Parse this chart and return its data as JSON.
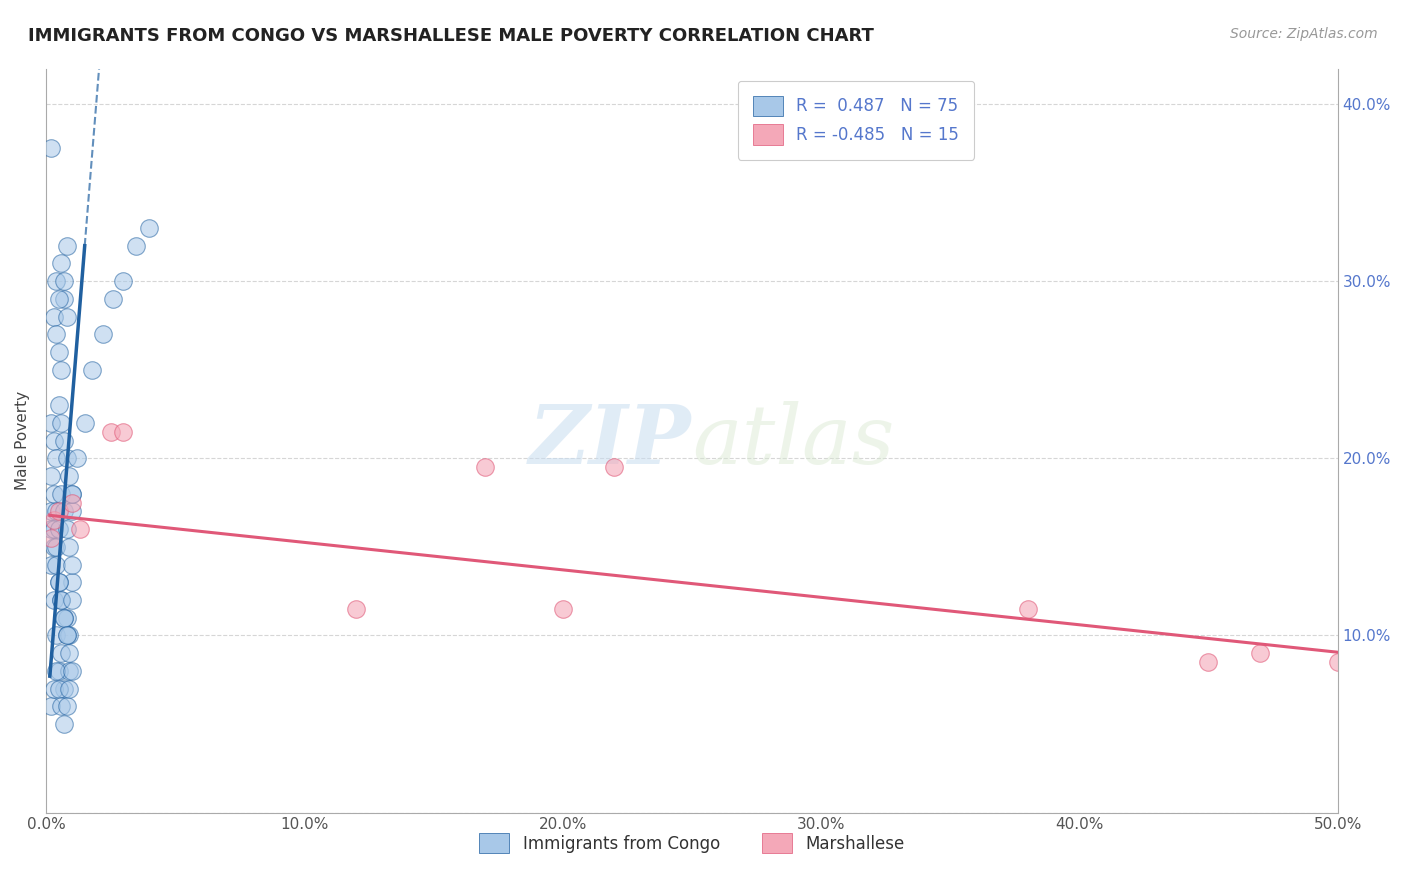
{
  "title": "IMMIGRANTS FROM CONGO VS MARSHALLESE MALE POVERTY CORRELATION CHART",
  "source": "Source: ZipAtlas.com",
  "ylabel": "Male Poverty",
  "watermark_zip": "ZIP",
  "watermark_atlas": "atlas",
  "xlim": [
    0.0,
    0.5
  ],
  "ylim": [
    0.0,
    0.42
  ],
  "blue_color": "#a8c8e8",
  "pink_color": "#f4a8b8",
  "blue_line_color": "#2060a0",
  "pink_line_color": "#e05878",
  "tick_color": "#5577cc",
  "grid_color": "#cccccc",
  "congo_x": [
    0.002,
    0.003,
    0.004,
    0.005,
    0.006,
    0.007,
    0.008,
    0.009,
    0.01,
    0.002,
    0.003,
    0.004,
    0.005,
    0.006,
    0.007,
    0.008,
    0.009,
    0.01,
    0.002,
    0.003,
    0.004,
    0.005,
    0.006,
    0.007,
    0.008,
    0.009,
    0.01,
    0.002,
    0.003,
    0.004,
    0.005,
    0.006,
    0.007,
    0.008,
    0.009,
    0.01,
    0.002,
    0.003,
    0.004,
    0.005,
    0.006,
    0.007,
    0.008,
    0.009,
    0.01,
    0.002,
    0.003,
    0.004,
    0.005,
    0.006,
    0.007,
    0.008,
    0.009,
    0.01,
    0.003,
    0.004,
    0.005,
    0.006,
    0.007,
    0.008,
    0.004,
    0.005,
    0.006,
    0.007,
    0.008,
    0.01,
    0.012,
    0.015,
    0.018,
    0.022,
    0.026,
    0.03,
    0.035,
    0.04,
    0.002
  ],
  "congo_y": [
    0.14,
    0.12,
    0.1,
    0.08,
    0.09,
    0.07,
    0.11,
    0.1,
    0.13,
    0.16,
    0.15,
    0.14,
    0.13,
    0.12,
    0.11,
    0.1,
    0.09,
    0.14,
    0.17,
    0.16,
    0.15,
    0.13,
    0.12,
    0.11,
    0.1,
    0.08,
    0.12,
    0.06,
    0.07,
    0.08,
    0.07,
    0.06,
    0.05,
    0.06,
    0.07,
    0.08,
    0.19,
    0.18,
    0.17,
    0.16,
    0.18,
    0.17,
    0.16,
    0.15,
    0.17,
    0.22,
    0.21,
    0.2,
    0.23,
    0.22,
    0.21,
    0.2,
    0.19,
    0.18,
    0.28,
    0.27,
    0.26,
    0.25,
    0.29,
    0.28,
    0.3,
    0.29,
    0.31,
    0.3,
    0.32,
    0.18,
    0.2,
    0.22,
    0.25,
    0.27,
    0.29,
    0.3,
    0.32,
    0.33,
    0.375
  ],
  "marsh_x": [
    0.002,
    0.003,
    0.005,
    0.01,
    0.013,
    0.025,
    0.03,
    0.17,
    0.22,
    0.45,
    0.12,
    0.2,
    0.38,
    0.47,
    0.5
  ],
  "marsh_y": [
    0.155,
    0.165,
    0.17,
    0.175,
    0.16,
    0.215,
    0.215,
    0.195,
    0.195,
    0.085,
    0.115,
    0.115,
    0.115,
    0.09,
    0.085
  ]
}
